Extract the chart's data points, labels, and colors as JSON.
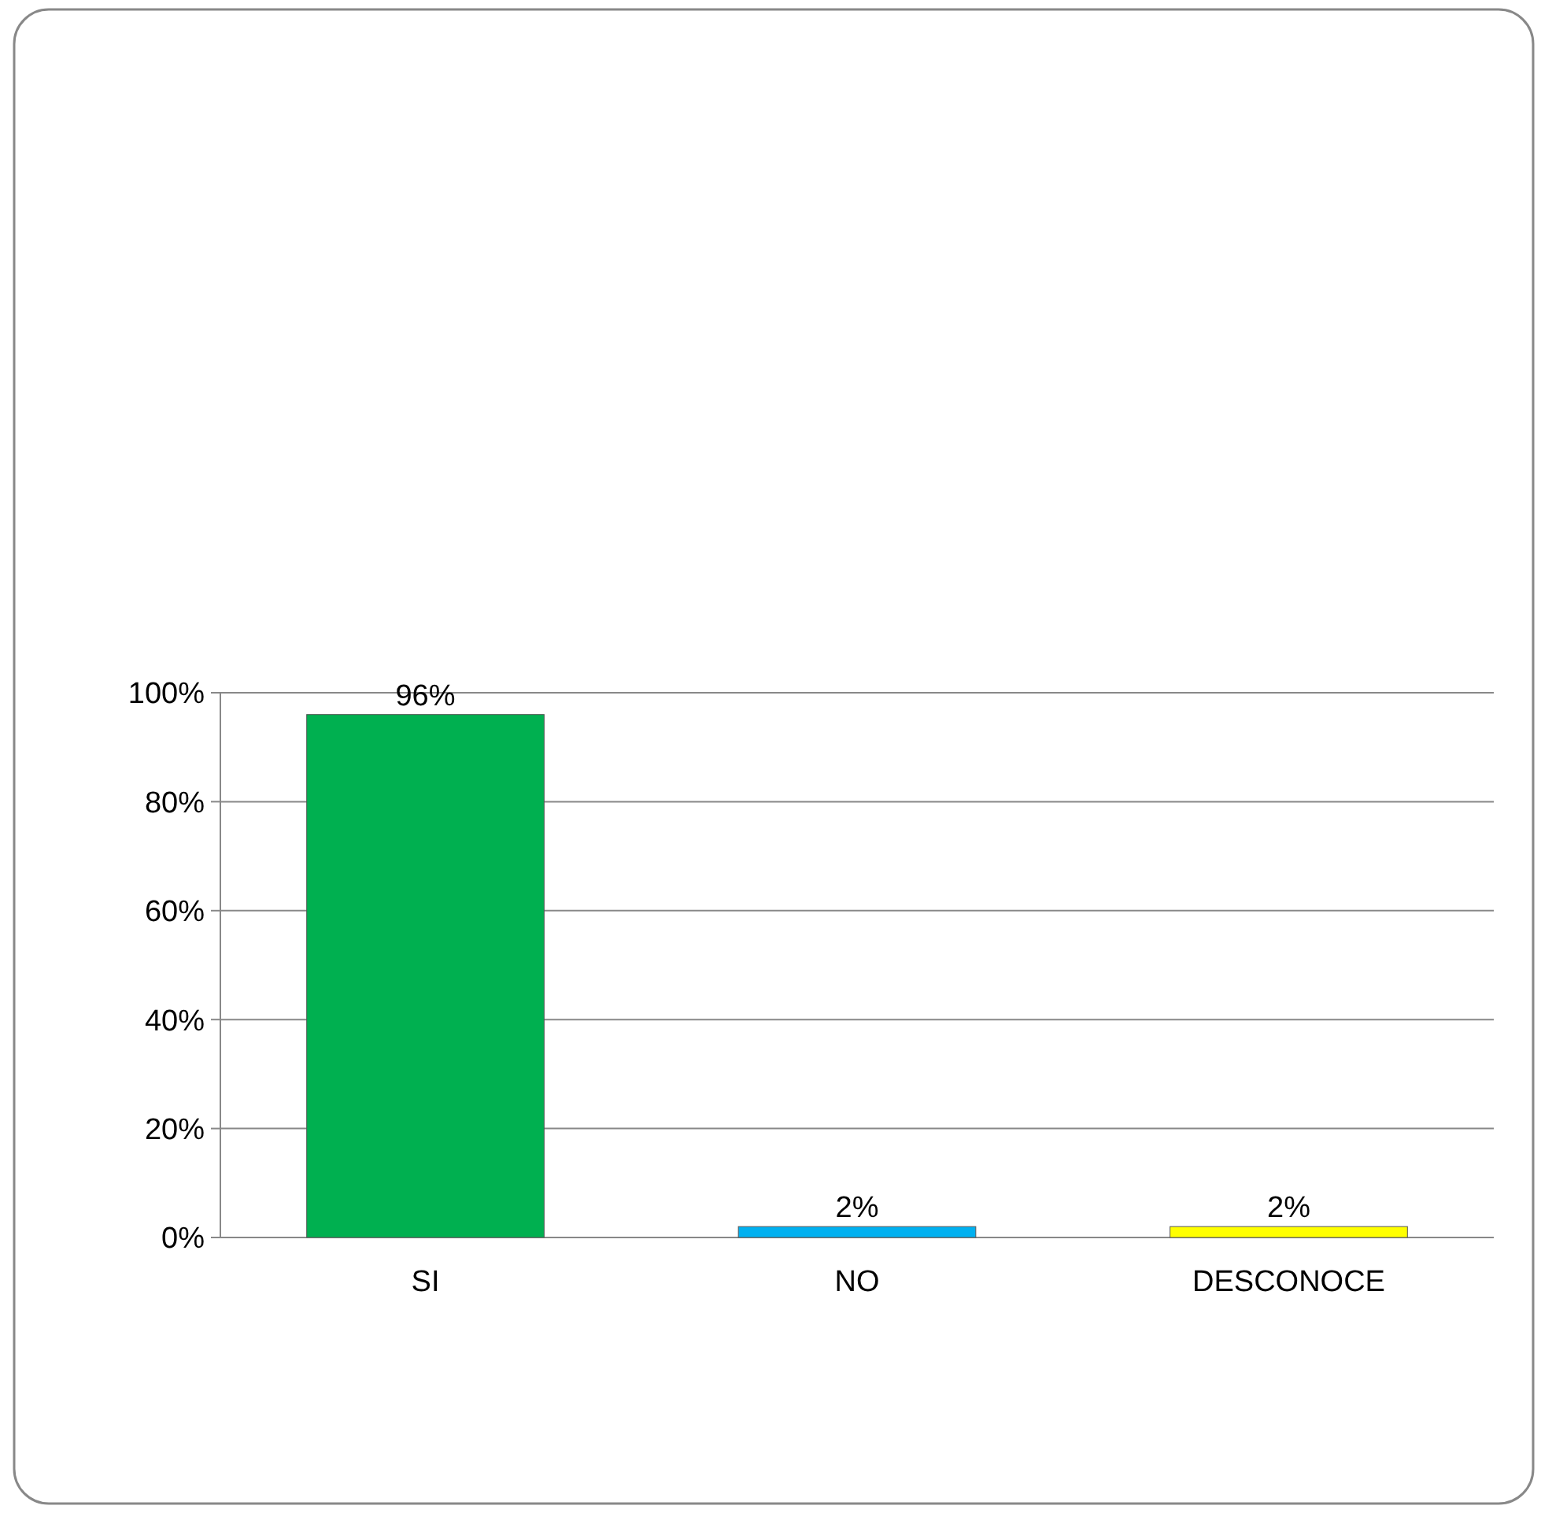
{
  "chart_data": {
    "type": "bar",
    "categories": [
      "SI",
      "NO",
      "DESCONOCE"
    ],
    "values": [
      96,
      2,
      2
    ],
    "colors": [
      "#00b050",
      "#00b0f0",
      "#ffff00"
    ],
    "value_labels": [
      "96%",
      "2%",
      "2%"
    ],
    "ylim": [
      0,
      100
    ],
    "yticks": [
      {
        "value": 0,
        "label": "0%"
      },
      {
        "value": 20,
        "label": "20%"
      },
      {
        "value": 40,
        "label": "40%"
      },
      {
        "value": 60,
        "label": "60%"
      },
      {
        "value": 80,
        "label": "80%"
      },
      {
        "value": 100,
        "label": "100%"
      }
    ],
    "grid": "y"
  }
}
